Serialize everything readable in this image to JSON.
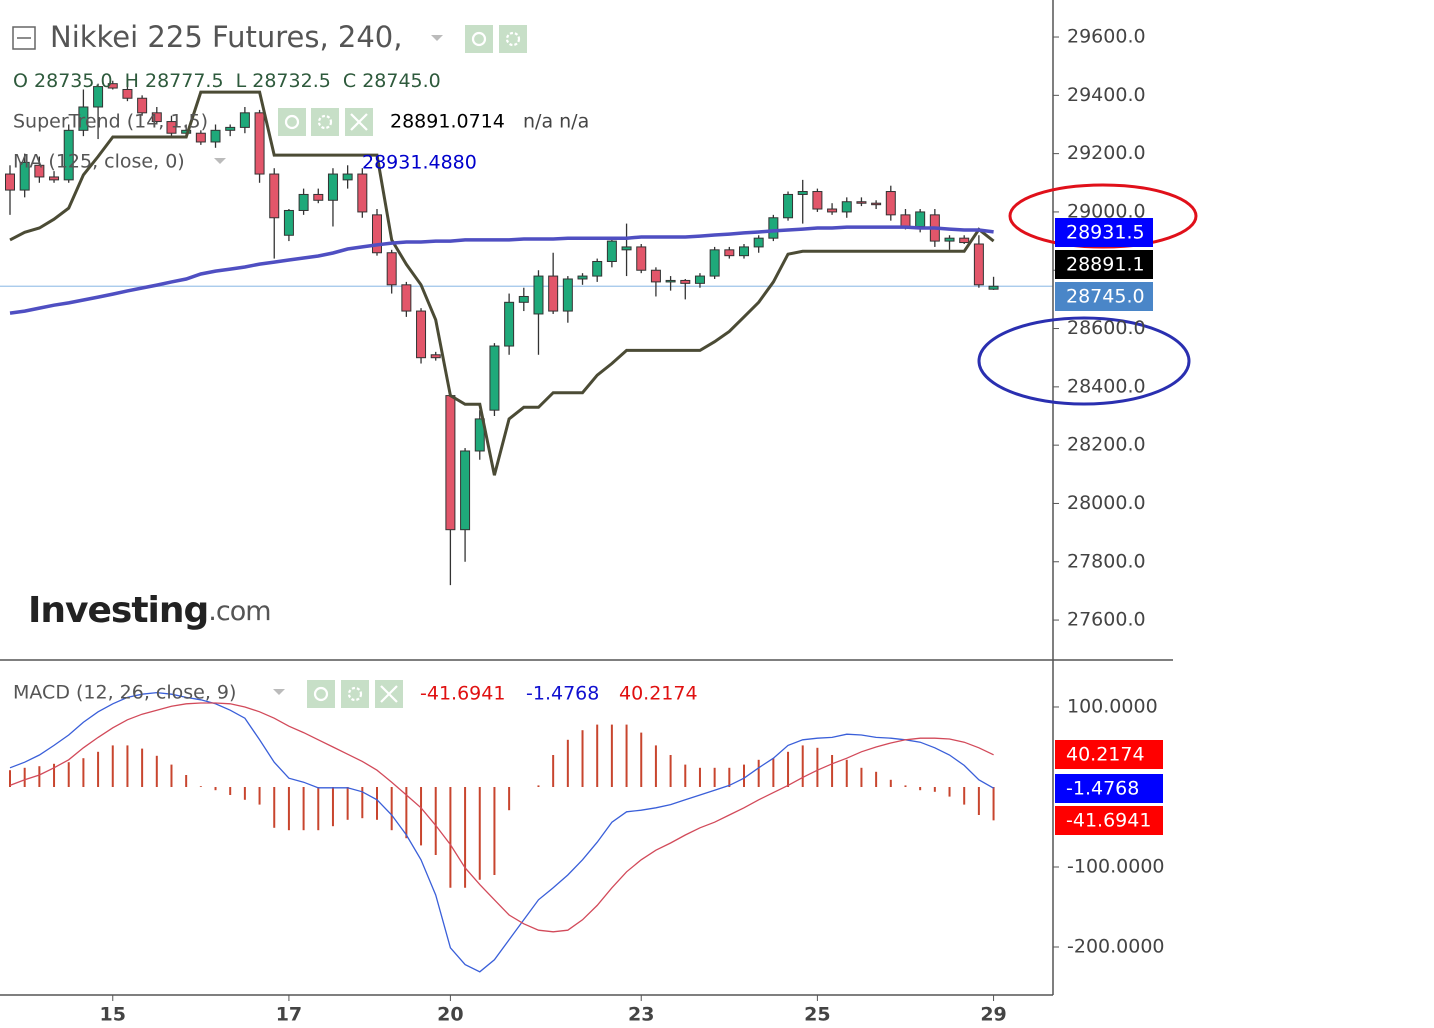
{
  "chart_data": [
    {
      "type": "candlestick",
      "title": "Nikkei 225 Futures, 240,",
      "readout": [
        {
          "key": "O",
          "text": "28735.0"
        },
        {
          "key": "H",
          "text": "28777.5"
        },
        {
          "key": "L",
          "text": "28732.5"
        },
        {
          "key": "C",
          "text": "28745.0"
        }
      ],
      "watermark": [
        "Investing",
        ".com"
      ],
      "categories": [
        null,
        null,
        null,
        null,
        null,
        null,
        null,
        "15",
        null,
        null,
        null,
        null,
        null,
        null,
        null,
        null,
        null,
        null,
        null,
        "17",
        null,
        null,
        null,
        null,
        null,
        null,
        null,
        null,
        null,
        null,
        "20",
        null,
        null,
        null,
        null,
        null,
        null,
        null,
        null,
        null,
        null,
        null,
        null,
        "23",
        null,
        null,
        null,
        null,
        null,
        null,
        null,
        null,
        null,
        null,
        null,
        "25",
        null,
        null,
        null,
        null,
        null,
        null,
        null,
        null,
        null,
        null,
        null,
        "29"
      ],
      "ohlc": {
        "open": [
          29130,
          29075,
          29160,
          29120,
          29110,
          29280,
          29360,
          29440,
          29420,
          29390,
          29340,
          29310,
          29270,
          29270,
          29240,
          29280,
          29290,
          29340,
          29130,
          28920,
          29005,
          29060,
          29040,
          29110,
          29130,
          28990,
          28860,
          28750,
          28660,
          28510,
          28370,
          27910,
          28180,
          28320,
          28540,
          28690,
          28650,
          28780,
          28660,
          28770,
          28780,
          28830,
          28870,
          28880,
          28800,
          28760,
          28765,
          28755,
          28780,
          28870,
          28850,
          28880,
          28910,
          28980,
          29060,
          29070,
          29010,
          29000,
          29035,
          29030,
          29070,
          28990,
          28950,
          28990,
          28900,
          28910,
          28890,
          28735
        ],
        "high": [
          29160,
          29200,
          29190,
          29140,
          29300,
          29420,
          29440,
          29450,
          29440,
          29400,
          29360,
          29330,
          29300,
          29280,
          29300,
          29300,
          29360,
          29350,
          29150,
          29010,
          29080,
          29080,
          29150,
          29160,
          29150,
          29010,
          28870,
          28760,
          28670,
          28520,
          28380,
          28190,
          28320,
          28550,
          28720,
          28740,
          28800,
          28860,
          28780,
          28790,
          28840,
          28910,
          28960,
          28890,
          28810,
          28780,
          28770,
          28790,
          28880,
          28880,
          28890,
          28920,
          28990,
          29070,
          29110,
          29080,
          29030,
          29050,
          29050,
          29040,
          29090,
          29010,
          29010,
          29010,
          28920,
          28920,
          28920,
          28777.5
        ],
        "low": [
          28990,
          29050,
          29100,
          29100,
          29100,
          29260,
          29250,
          29420,
          29380,
          29330,
          29300,
          29260,
          29260,
          29230,
          29220,
          29260,
          29270,
          29100,
          28840,
          28900,
          28990,
          29030,
          28950,
          29080,
          28980,
          28850,
          28720,
          28640,
          28480,
          28490,
          27720,
          27800,
          28150,
          28300,
          28510,
          28660,
          28510,
          28650,
          28620,
          28750,
          28760,
          28810,
          28780,
          28790,
          28710,
          28730,
          28700,
          28740,
          28770,
          28840,
          28840,
          28860,
          28900,
          28970,
          28960,
          29000,
          28990,
          28980,
          29020,
          29010,
          28970,
          28940,
          28930,
          28880,
          28870,
          28890,
          28740,
          28732.5
        ],
        "close": [
          29075,
          29170,
          29120,
          29110,
          29280,
          29360,
          29430,
          29425,
          29390,
          29340,
          29310,
          29270,
          29280,
          29240,
          29280,
          29290,
          29340,
          29130,
          28980,
          29005,
          29060,
          29040,
          29130,
          29130,
          29000,
          28860,
          28750,
          28660,
          28500,
          28500,
          27910,
          28180,
          28290,
          28540,
          28690,
          28710,
          28780,
          28660,
          28770,
          28780,
          28830,
          28900,
          28880,
          28800,
          28760,
          28765,
          28755,
          28780,
          28870,
          28850,
          28880,
          28910,
          28980,
          29060,
          29070,
          29010,
          29000,
          29035,
          29030,
          29025,
          28990,
          28950,
          29000,
          28900,
          28910,
          28895,
          28750,
          28745.0
        ]
      },
      "up_color": "#1fa97a",
      "down_color": "#e2566a",
      "last_price_color": "#9fc4ea",
      "series": [
        {
          "name": "SuperTrend (14, 1.5)",
          "color": "#4b4b35",
          "readout": "28891.0714",
          "extra": "n/a n/a",
          "values": [
            28904,
            28930,
            28945,
            28975,
            29013,
            29127,
            29190,
            29257,
            29257,
            29257,
            29257,
            29257,
            29257,
            29411,
            29411,
            29411,
            29411,
            29411,
            29195,
            29195,
            29195,
            29195,
            29195,
            29195,
            29195,
            29195,
            28904,
            28820,
            28750,
            28630,
            28370,
            28340,
            28340,
            28097,
            28290,
            28330,
            28330,
            28380,
            28380,
            28380,
            28440,
            28480,
            28525,
            28525,
            28525,
            28525,
            28525,
            28525,
            28555,
            28590,
            28640,
            28690,
            28760,
            28855,
            28865,
            28865,
            28865,
            28865,
            28865,
            28865,
            28865,
            28865,
            28865,
            28865,
            28865,
            28865,
            28940,
            28900
          ]
        },
        {
          "name": "MA (125, close, 0)",
          "color": "#4f4fc2",
          "readout": "28931.4880",
          "values": [
            28653,
            28660,
            28670,
            28680,
            28688,
            28698,
            28708,
            28718,
            28729,
            28739,
            28749,
            28760,
            28770,
            28787,
            28797,
            28804,
            28811,
            28821,
            28828,
            28835,
            28842,
            28849,
            28859,
            28873,
            28880,
            28887,
            28893,
            28897,
            28897,
            28900,
            28900,
            28904,
            28904,
            28904,
            28904,
            28907,
            28907,
            28907,
            28910,
            28910,
            28910,
            28910,
            28910,
            28914,
            28914,
            28914,
            28914,
            28917,
            28921,
            28924,
            28928,
            28931,
            28935,
            28938,
            28941,
            28945,
            28945,
            28948,
            28948,
            28948,
            28948,
            28948,
            28945,
            28945,
            28941,
            28938,
            28938,
            28931.488
          ]
        }
      ],
      "price_tags": [
        {
          "text": "28931.5",
          "color": "#0000ff"
        },
        {
          "text": "28891.1",
          "color": "#000000"
        },
        {
          "text": "28745.0",
          "color": "#4a86c8"
        }
      ],
      "ylim": [
        27463,
        29727
      ],
      "yticks": [
        {
          "value": 27600,
          "label": "27600.0"
        },
        {
          "value": 27800,
          "label": "27800.0"
        },
        {
          "value": 28000,
          "label": "28000.0"
        },
        {
          "value": 28200,
          "label": "28200.0"
        },
        {
          "value": 28400,
          "label": "28400.0"
        },
        {
          "value": 28600,
          "label": "28600.0"
        },
        {
          "value": 28800,
          "label": "28800.0"
        },
        {
          "value": 29000,
          "label": "29000.0"
        },
        {
          "value": 29200,
          "label": "29200.0"
        },
        {
          "value": 29400,
          "label": "29400.0"
        },
        {
          "value": 29600,
          "label": "29600.0"
        }
      ],
      "grid": false
    },
    {
      "type": "macd",
      "title": "MACD (12, 26, close, 9)",
      "readout": [
        {
          "text": "-41.6941",
          "color": "#e01010"
        },
        {
          "text": "-1.4768",
          "color": "#1010d0"
        },
        {
          "text": "40.2174",
          "color": "#e01010"
        }
      ],
      "histogram": {
        "color": "#c8452e",
        "values": [
          21,
          24,
          26,
          29,
          31,
          36,
          44,
          52,
          52,
          48,
          39,
          28,
          15,
          1,
          -4,
          -10,
          -16,
          -22,
          -51,
          -54,
          -54,
          -54,
          -49,
          -41,
          -39,
          -41,
          -54,
          -64,
          -73,
          -85,
          -126,
          -126,
          -116,
          -110,
          -29,
          0,
          2,
          40,
          59,
          71,
          78,
          78,
          78,
          68,
          52,
          40,
          28,
          24,
          24,
          24,
          28,
          34,
          36,
          44,
          52,
          49,
          40,
          34,
          24,
          19,
          9,
          2,
          -4,
          -6,
          -12,
          -22,
          -35,
          -41.6941
        ]
      },
      "series": [
        {
          "color": "#3a5fd9",
          "values": [
            24,
            31,
            40,
            52,
            65,
            81,
            94,
            104,
            112,
            116,
            118,
            116,
            112,
            109,
            104,
            96,
            86,
            59,
            31,
            11,
            6,
            -1,
            -1,
            -1,
            -6,
            -16,
            -35,
            -60,
            -91,
            -135,
            -201,
            -222,
            -231,
            -216,
            -191,
            -166,
            -141,
            -126,
            -110,
            -91,
            -69,
            -44,
            -31,
            -29,
            -26,
            -22,
            -16,
            -10,
            -4,
            2,
            11,
            24,
            36,
            52,
            59,
            61,
            62,
            66,
            65,
            62,
            61,
            59,
            56,
            49,
            40,
            27,
            9,
            -1.4768
          ]
        },
        {
          "color": "#d24a5a",
          "values": [
            2,
            9,
            15,
            24,
            34,
            49,
            62,
            74,
            84,
            91,
            96,
            101,
            104,
            105,
            105,
            104,
            100,
            94,
            86,
            76,
            68,
            59,
            50,
            41,
            32,
            21,
            6,
            -10,
            -26,
            -48,
            -72,
            -101,
            -122,
            -141,
            -160,
            -171,
            -179,
            -181,
            -179,
            -166,
            -148,
            -126,
            -106,
            -91,
            -79,
            -70,
            -60,
            -51,
            -44,
            -35,
            -26,
            -16,
            -7,
            2,
            12,
            21,
            29,
            36,
            44,
            50,
            55,
            59,
            61,
            61,
            60,
            56,
            49,
            40.2174
          ]
        }
      ],
      "tags": [
        {
          "text": "40.2174",
          "color": "#ff0000"
        },
        {
          "text": "-1.4768",
          "color": "#0000ff"
        },
        {
          "text": "-41.6941",
          "color": "#ff0000"
        }
      ],
      "ylim": [
        -260,
        158.75
      ],
      "yticks": [
        {
          "value": 100,
          "label": "100.0000"
        },
        {
          "value": -100,
          "label": "-100.0000"
        },
        {
          "value": -200,
          "label": "-200.0000"
        }
      ],
      "grid": false
    }
  ]
}
